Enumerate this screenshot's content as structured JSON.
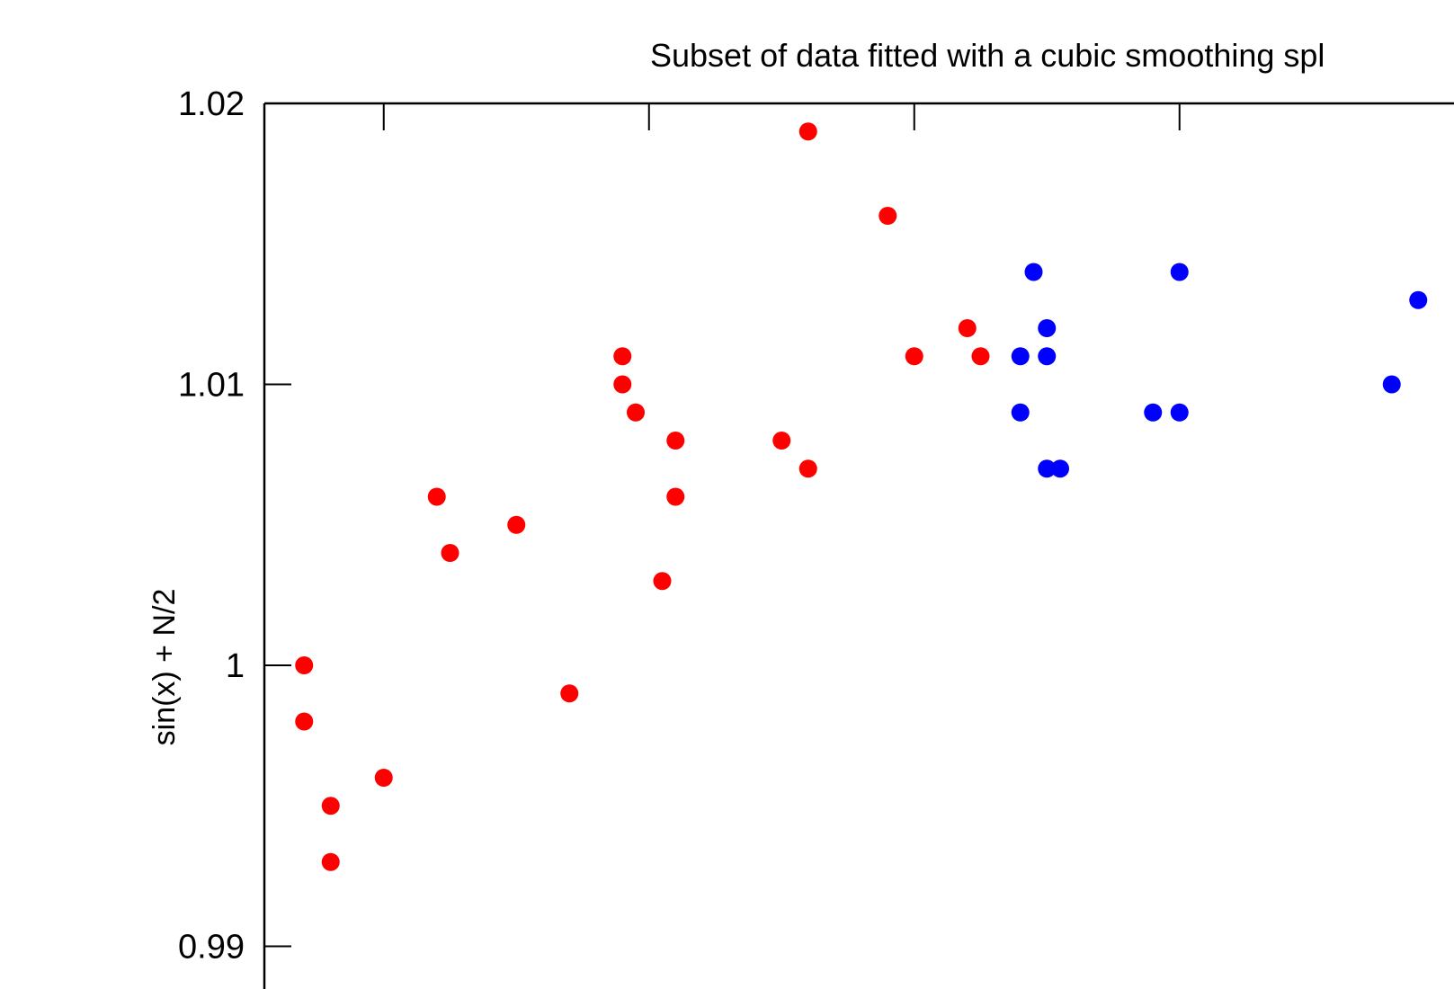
{
  "chart_data": {
    "type": "scatter",
    "title": "Subset of data fitted with a cubic smoothing spl",
    "xlabel": "",
    "ylabel": "sin(x) + N/2",
    "ylim": [
      0.99,
      1.02
    ],
    "yticks": [
      {
        "value": 1.02,
        "label": "1.02"
      },
      {
        "value": 1.01,
        "label": "1.01"
      },
      {
        "value": 1.0,
        "label": "1"
      },
      {
        "value": 0.99,
        "label": "0.99"
      }
    ],
    "xlim": [
      0.0,
      0.42
    ],
    "xticks": [
      0.045,
      0.145,
      0.245,
      0.345
    ],
    "grid": false,
    "series": [
      {
        "color": "#ff0000",
        "points": [
          {
            "x": 0.015,
            "y": 1.0
          },
          {
            "x": 0.015,
            "y": 0.998
          },
          {
            "x": 0.025,
            "y": 0.995
          },
          {
            "x": 0.025,
            "y": 0.993
          },
          {
            "x": 0.045,
            "y": 0.996
          },
          {
            "x": 0.065,
            "y": 1.006
          },
          {
            "x": 0.07,
            "y": 1.004
          },
          {
            "x": 0.095,
            "y": 1.005
          },
          {
            "x": 0.115,
            "y": 0.999
          },
          {
            "x": 0.135,
            "y": 1.011
          },
          {
            "x": 0.135,
            "y": 1.01
          },
          {
            "x": 0.14,
            "y": 1.009
          },
          {
            "x": 0.15,
            "y": 1.003
          },
          {
            "x": 0.155,
            "y": 1.008
          },
          {
            "x": 0.155,
            "y": 1.006
          },
          {
            "x": 0.195,
            "y": 1.008
          },
          {
            "x": 0.205,
            "y": 1.019
          },
          {
            "x": 0.205,
            "y": 1.007
          },
          {
            "x": 0.235,
            "y": 1.016
          },
          {
            "x": 0.245,
            "y": 1.011
          },
          {
            "x": 0.265,
            "y": 1.012
          },
          {
            "x": 0.27,
            "y": 1.011
          }
        ]
      },
      {
        "color": "#0000ff",
        "points": [
          {
            "x": 0.285,
            "y": 1.011
          },
          {
            "x": 0.285,
            "y": 1.009
          },
          {
            "x": 0.29,
            "y": 1.014
          },
          {
            "x": 0.295,
            "y": 1.012
          },
          {
            "x": 0.295,
            "y": 1.011
          },
          {
            "x": 0.295,
            "y": 1.007
          },
          {
            "x": 0.3,
            "y": 1.007
          },
          {
            "x": 0.335,
            "y": 1.009
          },
          {
            "x": 0.345,
            "y": 1.014
          },
          {
            "x": 0.345,
            "y": 1.009
          },
          {
            "x": 0.425,
            "y": 1.01
          },
          {
            "x": 0.435,
            "y": 1.013
          }
        ]
      }
    ]
  }
}
